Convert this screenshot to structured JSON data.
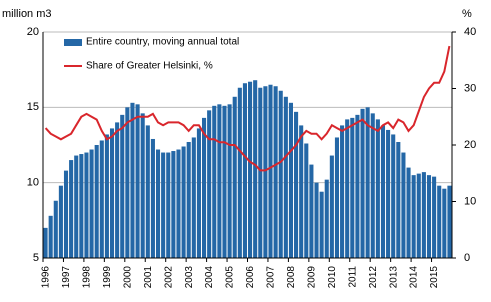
{
  "chart_data": {
    "type": "bar",
    "y_label": "million m3",
    "y2_label": "%",
    "categories": [
      "1996",
      null,
      null,
      null,
      "1997",
      null,
      null,
      null,
      "1998",
      null,
      null,
      null,
      "1999",
      null,
      null,
      null,
      "2000",
      null,
      null,
      null,
      "2001",
      null,
      null,
      null,
      "2002",
      null,
      null,
      null,
      "2003",
      null,
      null,
      null,
      "2004",
      null,
      null,
      null,
      "2005",
      null,
      null,
      null,
      "2006",
      null,
      null,
      null,
      "2007",
      null,
      null,
      null,
      "2008",
      null,
      null,
      null,
      "2009",
      null,
      null,
      null,
      "2010",
      null,
      null,
      null,
      "2011",
      null,
      null,
      null,
      "2012",
      null,
      null,
      null,
      "2013",
      null,
      null,
      null,
      "2014",
      null,
      null,
      null,
      "2015",
      null,
      null,
      null
    ],
    "series": [
      {
        "name": "Entire country, moving annual total",
        "type": "bar",
        "color": "#2467a6",
        "axis": "y",
        "values": [
          7.0,
          7.8,
          8.8,
          9.8,
          10.8,
          11.5,
          11.8,
          11.9,
          12.0,
          12.2,
          12.5,
          12.8,
          13.2,
          13.6,
          14.0,
          14.5,
          15.0,
          15.3,
          15.2,
          14.6,
          13.8,
          12.9,
          12.2,
          12.0,
          12.0,
          12.1,
          12.2,
          12.4,
          12.7,
          13.0,
          13.6,
          14.3,
          14.8,
          15.1,
          15.2,
          15.1,
          15.2,
          15.7,
          16.3,
          16.6,
          16.7,
          16.8,
          16.3,
          16.4,
          16.5,
          16.4,
          16.1,
          15.7,
          15.3,
          14.7,
          13.8,
          12.6,
          11.2,
          10.0,
          9.4,
          10.2,
          11.8,
          13.0,
          13.8,
          14.2,
          14.3,
          14.5,
          14.9,
          15.0,
          14.6,
          14.2,
          13.8,
          13.5,
          13.2,
          12.7,
          12.0,
          11.0,
          10.5,
          10.6,
          10.7,
          10.5,
          10.4,
          9.8,
          9.6,
          9.8
        ]
      },
      {
        "name": "Share of Greater Helsinki, %",
        "type": "line",
        "color": "#d9262c",
        "axis": "y2",
        "values": [
          23,
          22,
          21.5,
          21,
          21.5,
          22,
          23.5,
          25,
          25.5,
          25,
          24.5,
          22.5,
          21,
          21.5,
          22.5,
          23,
          24,
          24.5,
          25,
          25,
          25,
          25.5,
          24,
          23.5,
          24,
          24,
          24,
          23.5,
          22.5,
          23.5,
          23.5,
          22,
          21,
          21,
          20.5,
          20.5,
          20,
          20,
          19,
          18,
          17,
          16.5,
          15.5,
          15.5,
          16,
          16.5,
          17,
          18,
          19,
          20,
          21.5,
          22.5,
          22,
          22,
          21,
          22,
          23.5,
          23,
          22.5,
          23,
          23.5,
          24,
          24.5,
          23.5,
          23,
          22.5,
          23.5,
          24,
          23,
          24.5,
          24,
          22.5,
          23.5,
          26,
          28.5,
          30,
          31,
          31,
          33,
          37.5
        ]
      }
    ],
    "ylim": [
      5,
      20
    ],
    "yticks": [
      5,
      10,
      15,
      20
    ],
    "y2lim": [
      0,
      40
    ],
    "y2ticks": [
      0,
      10,
      20,
      30,
      40
    ],
    "grid": true,
    "legend": "upper left"
  }
}
